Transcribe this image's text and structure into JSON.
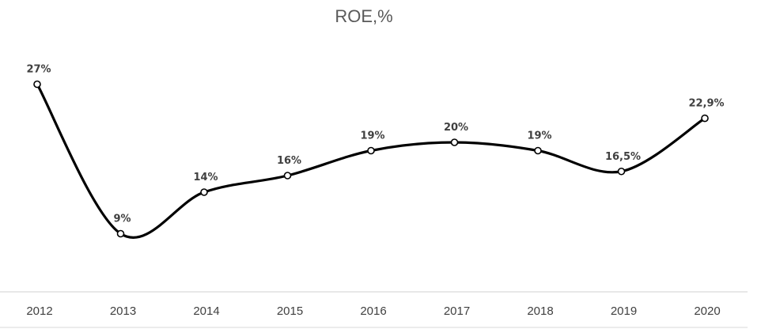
{
  "chart_data": {
    "type": "line",
    "title": "ROE,%",
    "xlabel": "",
    "ylabel": "",
    "categories": [
      "2012",
      "2013",
      "2014",
      "2015",
      "2016",
      "2017",
      "2018",
      "2019",
      "2020"
    ],
    "series": [
      {
        "values": [
          27,
          9,
          14,
          16,
          19,
          20,
          19,
          16.5,
          22.9
        ],
        "data_labels": [
          "27%",
          "9%",
          "14%",
          "16%",
          "19%",
          "20%",
          "19%",
          "16,5%",
          "22,9%"
        ]
      }
    ],
    "ylim": [
      0,
      32
    ],
    "grid": false,
    "legend": "none",
    "smooth": true,
    "colors": {
      "line": "#000000",
      "marker_fill": "#ffffff",
      "axis": "#d9d9d9",
      "text": "#404040",
      "title": "#595959"
    }
  }
}
